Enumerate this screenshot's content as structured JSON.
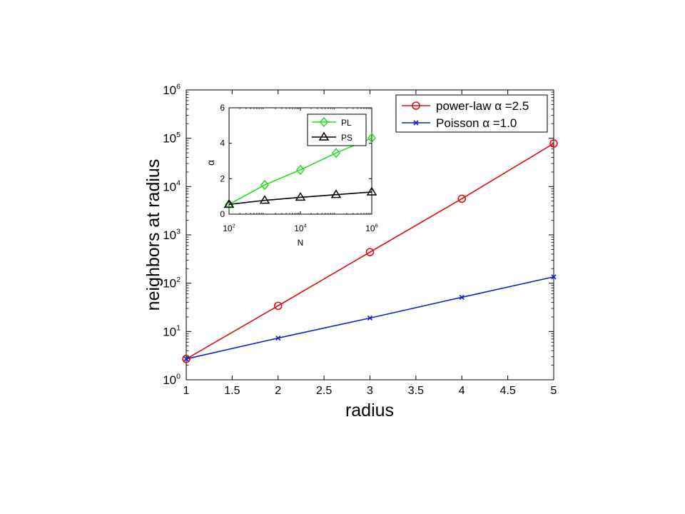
{
  "chart_data": [
    {
      "type": "line",
      "xlabel": "radius",
      "ylabel": "neighbors at radius",
      "xscale": "linear",
      "yscale": "log",
      "xlim": [
        1,
        5
      ],
      "ylim": [
        1,
        1000000
      ],
      "grid": false,
      "legend_position": "top-right",
      "x_ticks": [
        "1",
        "1.5",
        "2",
        "2.5",
        "3",
        "3.5",
        "4",
        "4.5",
        "5"
      ],
      "y_ticks": [
        {
          "base": "10",
          "exp": "0"
        },
        {
          "base": "10",
          "exp": "1"
        },
        {
          "base": "10",
          "exp": "2"
        },
        {
          "base": "10",
          "exp": "3"
        },
        {
          "base": "10",
          "exp": "4"
        },
        {
          "base": "10",
          "exp": "5"
        },
        {
          "base": "10",
          "exp": "6"
        }
      ],
      "series": [
        {
          "name": "power-law α =2.5",
          "color": "#dd1111",
          "marker": "circle",
          "x": [
            1,
            2,
            3,
            4,
            5
          ],
          "y": [
            2.7,
            34,
            440,
            5600,
            78000
          ]
        },
        {
          "name": "Poisson α =1.0",
          "color": "#1122cc",
          "marker": "x",
          "x": [
            1,
            2,
            3,
            4,
            5
          ],
          "y": [
            2.7,
            7.3,
            19,
            51,
            135
          ]
        }
      ]
    },
    {
      "type": "line",
      "xlabel": "N",
      "ylabel": "α",
      "xscale": "log",
      "yscale": "linear",
      "xlim": [
        100,
        1000000
      ],
      "ylim": [
        0,
        6
      ],
      "grid": false,
      "legend_position": "top-right",
      "x_ticks": [
        {
          "base": "10",
          "exp": "2"
        },
        {
          "base": "10",
          "exp": "4"
        },
        {
          "base": "10",
          "exp": "6"
        }
      ],
      "y_ticks": [
        "0",
        "2",
        "4",
        "6"
      ],
      "series": [
        {
          "name": "PL",
          "color": "#22dd22",
          "marker": "diamond",
          "x": [
            100,
            1000,
            10000,
            100000,
            1000000
          ],
          "y": [
            0.55,
            1.65,
            2.5,
            3.45,
            4.3
          ]
        },
        {
          "name": "PS",
          "color": "#000000",
          "marker": "triangle",
          "x": [
            100,
            1000,
            10000,
            100000,
            1000000
          ],
          "y": [
            0.55,
            0.78,
            0.95,
            1.1,
            1.25
          ]
        }
      ]
    }
  ]
}
